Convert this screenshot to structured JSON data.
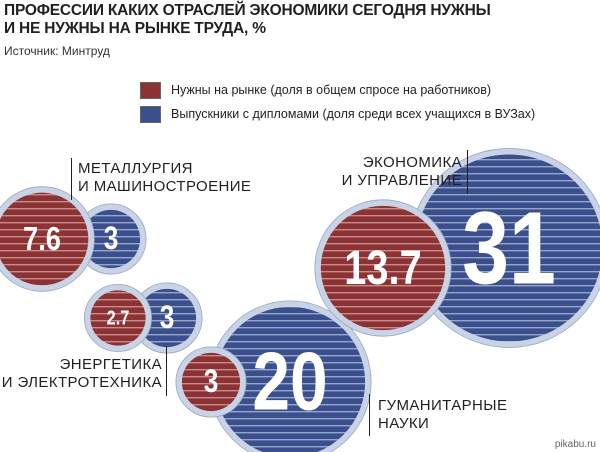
{
  "title_lines": [
    "ПРОФЕССИИ КАКИХ ОТРАСЛЕЙ ЭКОНОМИКИ СЕГОДНЯ НУЖНЫ",
    "И НЕ НУЖНЫ НА РЫНКЕ ТРУДА, %"
  ],
  "source": "Источник: Минтруд",
  "watermark": "pikabu.ru",
  "colors": {
    "demand": "#8b3235",
    "graduates": "#3b4f8c",
    "ring": "#c9d3e6"
  },
  "chart_data": {
    "type": "bubble",
    "title": "ПРОФЕССИИ КАКИХ ОТРАСЛЕЙ ЭКОНОМИКИ СЕГОДНЯ НУЖНЫ И НЕ НУЖНЫ НА РЫНКЕ ТРУДА, %",
    "legend": [
      {
        "name": "Нужны на рынке (доля в общем спросе на работников)",
        "color": "#8b3235"
      },
      {
        "name": "Выпускники с дипломами (доля среди всех учащихся в ВУЗах)",
        "color": "#3b4f8c"
      }
    ],
    "legend_position": "top",
    "categories": [
      {
        "id": "metal",
        "label_lines": [
          "МЕТАЛЛУРГИЯ",
          "И МАШИНОСТРОЕНИЕ"
        ],
        "demand": 7.6,
        "graduates": 3,
        "demand_label": "7.6",
        "graduates_label": "3"
      },
      {
        "id": "energy",
        "label_lines": [
          "ЭНЕРГЕТИКА",
          "И ЭЛЕКТРОТЕХНИКА"
        ],
        "demand": 2.7,
        "graduates": 3,
        "demand_label": "2.7",
        "graduates_label": "3"
      },
      {
        "id": "econ",
        "label_lines": [
          "ЭКОНОМИКА",
          "И УПРАВЛЕНИЕ"
        ],
        "demand": 13.7,
        "graduates": 31,
        "demand_label": "13.7",
        "graduates_label": "31"
      },
      {
        "id": "hum",
        "label_lines": [
          "ГУМАНИТАРНЫЕ",
          "НАУКИ"
        ],
        "demand": 3,
        "graduates": 20,
        "demand_label": "3",
        "graduates_label": "20"
      }
    ]
  }
}
